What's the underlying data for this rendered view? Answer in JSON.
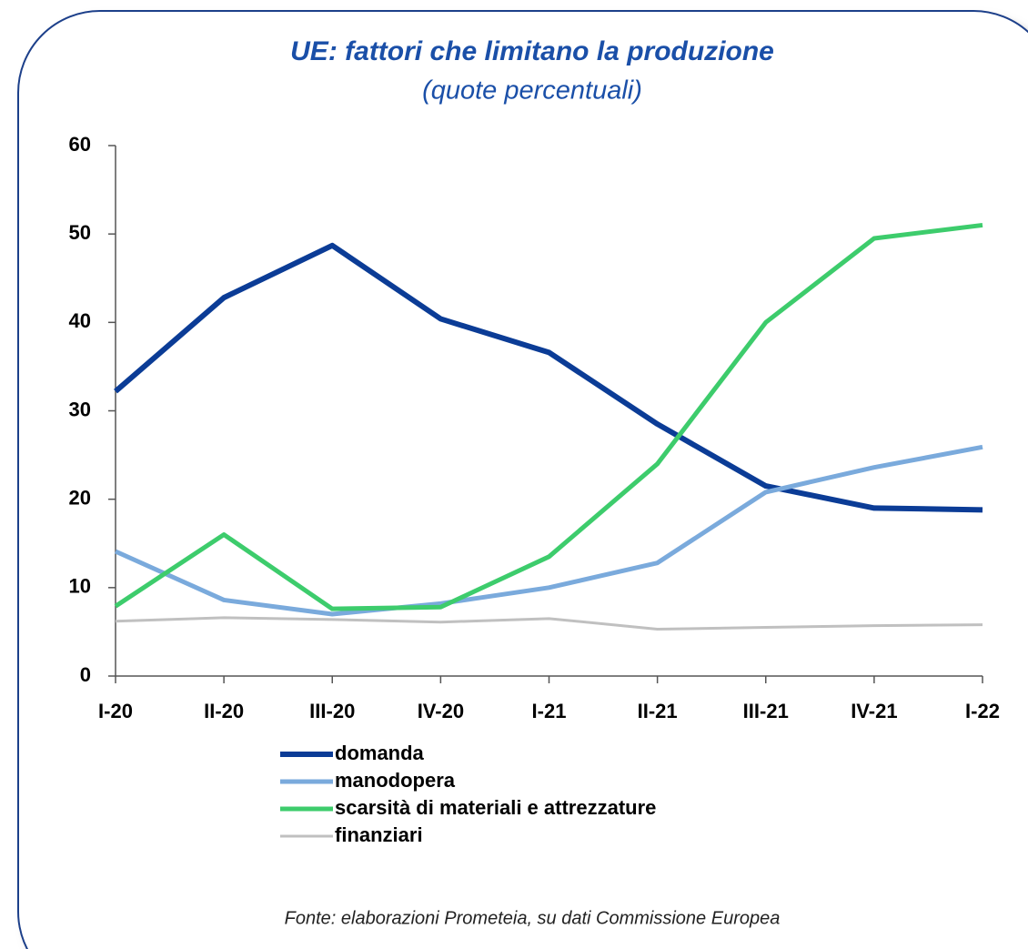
{
  "chart_data": {
    "type": "line",
    "title": "UE: fattori che limitano la produzione",
    "subtitle": "(quote percentuali)",
    "source": "Fonte: elaborazioni Prometeia, su dati Commissione Europea",
    "categories": [
      "I-20",
      "II-20",
      "III-20",
      "IV-20",
      "I-21",
      "II-21",
      "III-21",
      "IV-21",
      "I-22"
    ],
    "series": [
      {
        "name": "domanda",
        "color": "#0b3c96",
        "values": [
          32.2,
          42.8,
          48.7,
          40.4,
          36.6,
          28.5,
          21.5,
          19.0,
          18.8
        ]
      },
      {
        "name": "manodopera",
        "color": "#7aaadc",
        "values": [
          14.1,
          8.6,
          7.0,
          8.2,
          10.0,
          12.8,
          20.8,
          23.6,
          25.9
        ]
      },
      {
        "name": "scarsità di materiali e attrezzature",
        "color": "#3dcc6c",
        "values": [
          7.9,
          16.0,
          7.6,
          7.8,
          13.5,
          24.0,
          40.0,
          49.5,
          51.0
        ]
      },
      {
        "name": "finanziari",
        "color": "#c0c0c0",
        "values": [
          6.2,
          6.6,
          6.4,
          6.1,
          6.5,
          5.3,
          5.5,
          5.7,
          5.8
        ]
      }
    ],
    "ylim": [
      0,
      60
    ],
    "yticks": [
      0,
      10,
      20,
      30,
      40,
      50,
      60
    ],
    "grid": false
  }
}
